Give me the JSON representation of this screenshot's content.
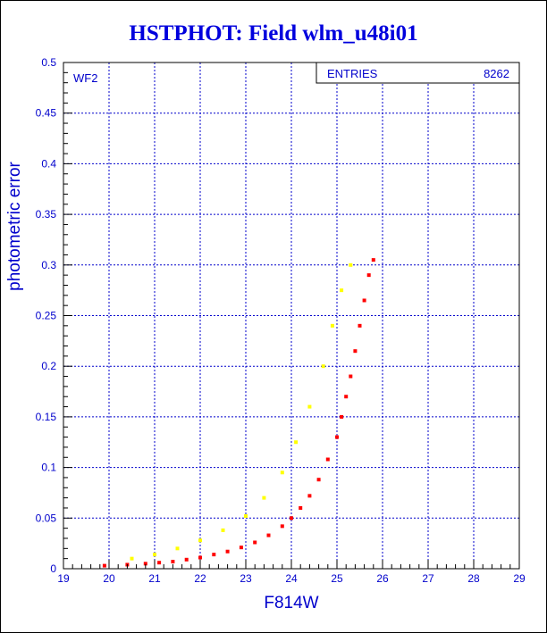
{
  "chart_data": {
    "type": "scatter",
    "title": "HSTPHOT: Field wlm_u48i01",
    "xlabel": "F814W",
    "ylabel": "photometric error",
    "xlim": [
      19,
      29
    ],
    "ylim": [
      0,
      0.5
    ],
    "x_ticks": [
      "19",
      "20",
      "21",
      "22",
      "23",
      "24",
      "25",
      "26",
      "27",
      "28",
      "29"
    ],
    "y_ticks": [
      "0",
      "0.05",
      "0.1",
      "0.15",
      "0.2",
      "0.25",
      "0.3",
      "0.35",
      "0.4",
      "0.45",
      "0.5"
    ],
    "grid": true,
    "panel_label": "WF2",
    "stats_box": {
      "label": "ENTRIES",
      "value": "8262"
    },
    "series": [
      {
        "color": "#ff0000",
        "points": [
          [
            19.9,
            0.003
          ],
          [
            20.4,
            0.004
          ],
          [
            20.8,
            0.005
          ],
          [
            21.1,
            0.006
          ],
          [
            21.4,
            0.007
          ],
          [
            21.7,
            0.009
          ],
          [
            22.0,
            0.011
          ],
          [
            22.3,
            0.014
          ],
          [
            22.6,
            0.017
          ],
          [
            22.9,
            0.021
          ],
          [
            23.2,
            0.026
          ],
          [
            23.5,
            0.033
          ],
          [
            23.8,
            0.042
          ],
          [
            24.0,
            0.05
          ],
          [
            24.2,
            0.06
          ],
          [
            24.4,
            0.072
          ],
          [
            24.6,
            0.088
          ],
          [
            24.8,
            0.108
          ],
          [
            25.0,
            0.13
          ],
          [
            25.1,
            0.15
          ],
          [
            25.2,
            0.17
          ],
          [
            25.3,
            0.19
          ],
          [
            25.4,
            0.215
          ],
          [
            25.5,
            0.24
          ],
          [
            25.6,
            0.265
          ],
          [
            25.7,
            0.29
          ],
          [
            25.8,
            0.305
          ]
        ]
      },
      {
        "color": "#ffff00",
        "points": [
          [
            20.5,
            0.01
          ],
          [
            21.0,
            0.014
          ],
          [
            21.5,
            0.02
          ],
          [
            22.0,
            0.028
          ],
          [
            22.5,
            0.038
          ],
          [
            23.0,
            0.052
          ],
          [
            23.4,
            0.07
          ],
          [
            23.8,
            0.095
          ],
          [
            24.1,
            0.125
          ],
          [
            24.4,
            0.16
          ],
          [
            24.7,
            0.2
          ],
          [
            24.9,
            0.24
          ],
          [
            25.1,
            0.275
          ],
          [
            25.3,
            0.3
          ]
        ]
      }
    ]
  }
}
